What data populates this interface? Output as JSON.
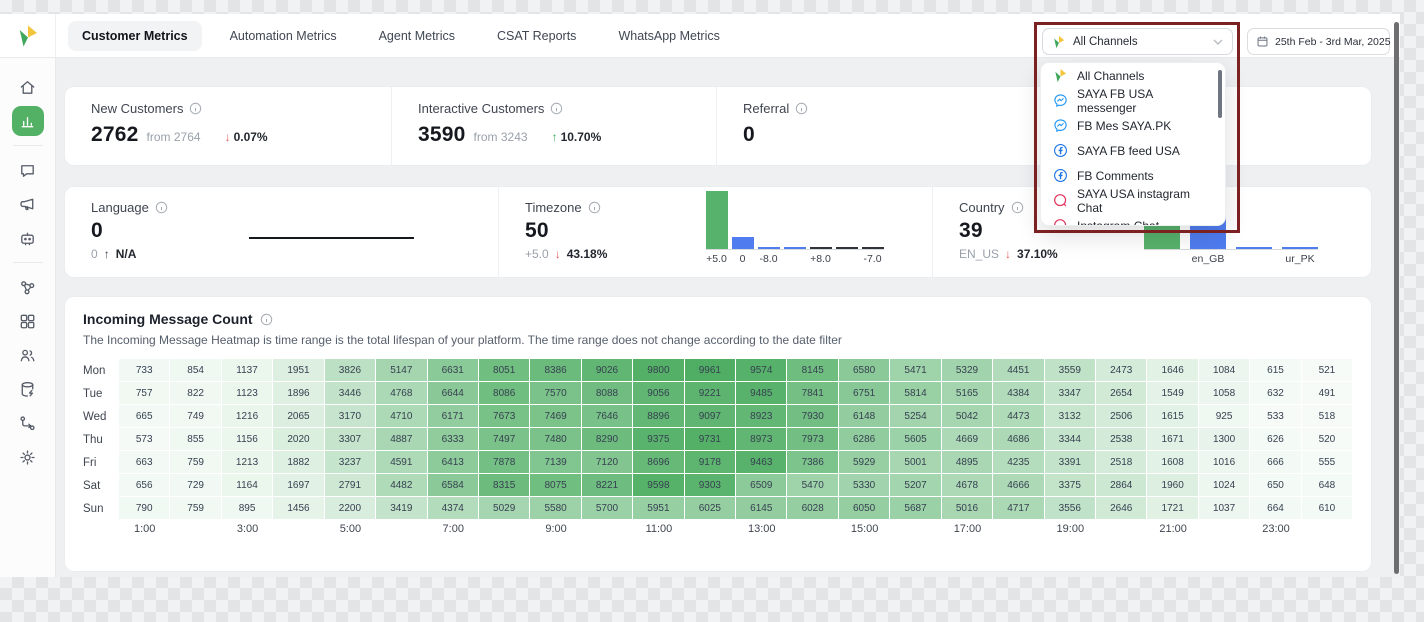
{
  "colors": {
    "accent_green": "#53b166",
    "bar_green": "#57b26b",
    "bar_blue": "#4f7df0",
    "bar_dark": "#31343b",
    "heat_high": "#4fae63",
    "down_red": "#e25c5c",
    "up_green": "#33a857",
    "annotation_red": "#7c2121"
  },
  "topbar": {
    "tabs": [
      {
        "label": "Customer Metrics",
        "active": true
      },
      {
        "label": "Automation Metrics",
        "active": false
      },
      {
        "label": "Agent Metrics",
        "active": false
      },
      {
        "label": "CSAT Reports",
        "active": false
      },
      {
        "label": "WhatsApp Metrics",
        "active": false
      }
    ],
    "channel_selector_value": "All Channels",
    "date_range_label": "25th Feb - 3rd Mar, 2025"
  },
  "sidebar": {
    "active_icon": "analytics-icon",
    "groups": [
      [
        "home-icon",
        "analytics-icon"
      ],
      [
        "chat-icon",
        "megaphone-icon",
        "bot-icon"
      ],
      [
        "nodes-icon",
        "grid-icon",
        "users-icon",
        "database-icon",
        "workflow-icon",
        "settings-icon"
      ]
    ]
  },
  "channel_dropdown": {
    "items": [
      {
        "label": "All Channels",
        "icon": "brand-logo-icon"
      },
      {
        "label": "SAYA FB USA messenger",
        "icon": "messenger-icon"
      },
      {
        "label": "FB Mes SAYA.PK",
        "icon": "messenger-icon"
      },
      {
        "label": "SAYA FB feed USA",
        "icon": "facebook-icon"
      },
      {
        "label": "FB Comments",
        "icon": "facebook-icon"
      },
      {
        "label": "SAYA USA instagram Chat",
        "icon": "instagram-icon"
      },
      {
        "label": "Instagram Chat",
        "icon": "instagram-icon"
      }
    ]
  },
  "kpi_row": [
    {
      "title": "New Customers",
      "value": "2762",
      "baseline": "from 2764",
      "delta": "0.07%",
      "arrow": "down",
      "trend": "down"
    },
    {
      "title": "Interactive Customers",
      "value": "3590",
      "baseline": "from 3243",
      "delta": "10.70%",
      "arrow": "up",
      "trend": "up"
    },
    {
      "title": "Referral",
      "value": "0",
      "baseline": "",
      "delta": "",
      "arrow": "",
      "trend": ""
    }
  ],
  "distribution_row": [
    {
      "title": "Language",
      "value": "0",
      "sub_label": "0",
      "delta": "N/A",
      "arrow": "up",
      "trend": "neutral",
      "chart_id": "language_trend"
    },
    {
      "title": "Timezone",
      "value": "50",
      "sub_label": "+5.0",
      "delta": "43.18%",
      "arrow": "down",
      "trend": "down",
      "chart_id": "timezone_distribution"
    },
    {
      "title": "Country",
      "value": "39",
      "sub_label": "EN_US",
      "delta": "37.10%",
      "arrow": "down",
      "trend": "down",
      "chart_id": "country_distribution"
    }
  ],
  "heatmap": {
    "title": "Incoming Message Count",
    "subtitle": "The Incoming Message Heatmap is time range is the total lifespan of your platform. The time range does not change according to the date filter",
    "chart_id": "incoming_message_heatmap"
  },
  "chart_data": [
    {
      "id": "language_trend",
      "type": "line",
      "title": "Language",
      "values": [
        0,
        0
      ],
      "note": "flat zero line"
    },
    {
      "id": "timezone_distribution",
      "type": "bar",
      "title": "Timezone",
      "categories": [
        "+5.0",
        "0",
        "-8.0",
        "",
        "+8.0",
        "",
        "-7.0"
      ],
      "values": [
        50,
        10,
        2,
        2,
        1,
        1,
        1
      ],
      "bar_colors": [
        "green",
        "blue",
        "blue",
        "blue",
        "dark",
        "dark",
        "dark"
      ]
    },
    {
      "id": "country_distribution",
      "type": "bar",
      "title": "Country",
      "categories": [
        "",
        "en_GB",
        "",
        "ur_PK"
      ],
      "values": [
        39,
        43,
        2,
        2
      ],
      "bar_colors": [
        "green",
        "blue",
        "blue",
        "blue"
      ]
    },
    {
      "id": "incoming_message_heatmap",
      "type": "heatmap",
      "title": "Incoming Message Count",
      "row_labels": [
        "Mon",
        "Tue",
        "Wed",
        "Thu",
        "Fri",
        "Sat",
        "Sun"
      ],
      "x_tick_labels": [
        "1:00",
        "3:00",
        "5:00",
        "7:00",
        "9:00",
        "11:00",
        "13:00",
        "15:00",
        "17:00",
        "19:00",
        "21:00",
        "23:00"
      ],
      "value_range": [
        0,
        10000
      ],
      "values": [
        [
          733,
          854,
          1137,
          1951,
          3826,
          5147,
          6631,
          8051,
          8386,
          9026,
          9800,
          9961,
          9574,
          8145,
          6580,
          5471,
          5329,
          4451,
          3559,
          2473,
          1646,
          1084,
          615,
          521
        ],
        [
          757,
          822,
          1123,
          1896,
          3446,
          4768,
          6644,
          8086,
          7570,
          8088,
          9056,
          9221,
          9485,
          7841,
          6751,
          5814,
          5165,
          4384,
          3347,
          2654,
          1549,
          1058,
          632,
          491
        ],
        [
          665,
          749,
          1216,
          2065,
          3170,
          4710,
          6171,
          7673,
          7469,
          7646,
          8896,
          9097,
          8923,
          7930,
          6148,
          5254,
          5042,
          4473,
          3132,
          2506,
          1615,
          925,
          533,
          518
        ],
        [
          573,
          855,
          1156,
          2020,
          3307,
          4887,
          6333,
          7497,
          7480,
          8290,
          9375,
          9731,
          8973,
          7973,
          6286,
          5605,
          4669,
          4686,
          3344,
          2538,
          1671,
          1300,
          626,
          520
        ],
        [
          663,
          759,
          1213,
          1882,
          3237,
          4591,
          6413,
          7878,
          7139,
          7120,
          8696,
          9178,
          9463,
          7386,
          5929,
          5001,
          4895,
          4235,
          3391,
          2518,
          1608,
          1016,
          666,
          555
        ],
        [
          656,
          729,
          1164,
          1697,
          2791,
          4482,
          6584,
          8315,
          8075,
          8221,
          9598,
          9303,
          6509,
          5470,
          5330,
          5207,
          4678,
          4666,
          3375,
          2864,
          1960,
          1024,
          650,
          648
        ],
        [
          790,
          759,
          895,
          1456,
          2200,
          3419,
          4374,
          5029,
          5580,
          5700,
          5951,
          6025,
          6145,
          6028,
          6050,
          5687,
          5016,
          4717,
          3556,
          2646,
          1721,
          1037,
          664,
          610
        ]
      ]
    }
  ]
}
